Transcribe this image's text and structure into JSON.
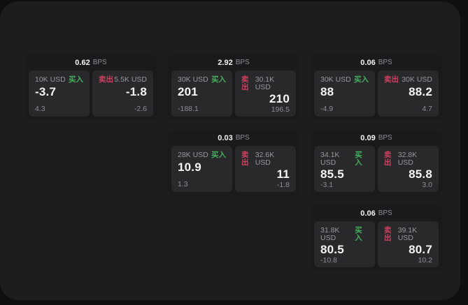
{
  "labels": {
    "bps_unit": "BPS",
    "buy": "买入",
    "sell": "卖出"
  },
  "colors": {
    "buy_green": "#43b05c",
    "sell_red": "#cc4261",
    "panel_bg": "#1d1d1f",
    "card_bg": "#1a1a1c",
    "subpanel_bg": "#29292c",
    "outer_bg": "#0f0f11"
  },
  "cards": [
    {
      "bps": "0.62",
      "row": 1,
      "col": 1,
      "buy": {
        "amount": "10K USD",
        "value": "-3.7",
        "sub": "4.3"
      },
      "sell": {
        "amount": "5.5K USD",
        "value": "-1.8",
        "sub": "-2.6"
      }
    },
    {
      "bps": "2.92",
      "row": 1,
      "col": 2,
      "buy": {
        "amount": "30K USD",
        "value": "201",
        "sub": "-188.1"
      },
      "sell": {
        "amount": "30.1K USD",
        "value": "210",
        "sub": "196.5"
      }
    },
    {
      "bps": "0.06",
      "row": 1,
      "col": 3,
      "buy": {
        "amount": "30K USD",
        "value": "88",
        "sub": "-4.9"
      },
      "sell": {
        "amount": "30K USD",
        "value": "88.2",
        "sub": "4.7"
      }
    },
    {
      "bps": "0.03",
      "row": 2,
      "col": 2,
      "buy": {
        "amount": "28K USD",
        "value": "10.9",
        "sub": "1.3"
      },
      "sell": {
        "amount": "32.6K USD",
        "value": "11",
        "sub": "-1.8"
      }
    },
    {
      "bps": "0.09",
      "row": 2,
      "col": 3,
      "buy": {
        "amount": "34.1K USD",
        "value": "85.5",
        "sub": "-3.1"
      },
      "sell": {
        "amount": "32.8K USD",
        "value": "85.8",
        "sub": "3.0"
      }
    },
    {
      "bps": "0.06",
      "row": 3,
      "col": 3,
      "buy": {
        "amount": "31.8K USD",
        "value": "80.5",
        "sub": "-10.8"
      },
      "sell": {
        "amount": "39.1K USD",
        "value": "80.7",
        "sub": "10.2"
      }
    }
  ]
}
